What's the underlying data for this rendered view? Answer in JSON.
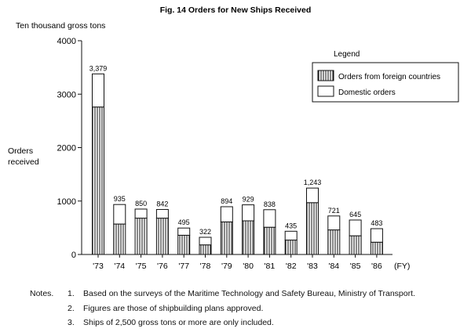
{
  "chart_data": {
    "type": "bar",
    "stacked": true,
    "title": "Fig. 14  Orders for New Ships Received",
    "unit_label": "Ten thousand gross tons",
    "ylabel": "Orders received",
    "x_unit": "(FY)",
    "ylim": [
      0,
      4000
    ],
    "yticks": [
      "0",
      "1000",
      "2000",
      "3000",
      "4000"
    ],
    "categories": [
      "'73",
      "'74",
      "'75",
      "'76",
      "'77",
      "'78",
      "'79",
      "'80",
      "'81",
      "'82",
      "'83",
      "'84",
      "'85",
      "'86"
    ],
    "totals": [
      3379,
      935,
      850,
      842,
      495,
      322,
      894,
      929,
      838,
      435,
      1243,
      721,
      645,
      483
    ],
    "total_labels": [
      "3,379",
      "935",
      "850",
      "842",
      "495",
      "322",
      "894",
      "929",
      "838",
      "435",
      "1,243",
      "721",
      "645",
      "483"
    ],
    "series": [
      {
        "name": "Orders from foreign countries",
        "pattern": "vertical-hatch",
        "values": [
          2760,
          570,
          680,
          680,
          360,
          180,
          610,
          630,
          510,
          270,
          970,
          460,
          350,
          230
        ]
      },
      {
        "name": "Domestic orders",
        "pattern": "plain",
        "values": [
          619,
          365,
          170,
          162,
          135,
          142,
          284,
          299,
          328,
          165,
          273,
          261,
          295,
          253
        ]
      }
    ],
    "legend": {
      "title": "Legend",
      "position": "top-right"
    },
    "grid": false
  },
  "notes": {
    "label": "Notes.",
    "items": [
      {
        "num": "1.",
        "text": "Based on the surveys of the Maritime Technology and Safety Bureau, Ministry of Transport."
      },
      {
        "num": "2.",
        "text": "Figures are those of shipbuilding plans approved."
      },
      {
        "num": "3.",
        "text": "Ships of 2,500 gross tons or more are only included."
      }
    ]
  }
}
